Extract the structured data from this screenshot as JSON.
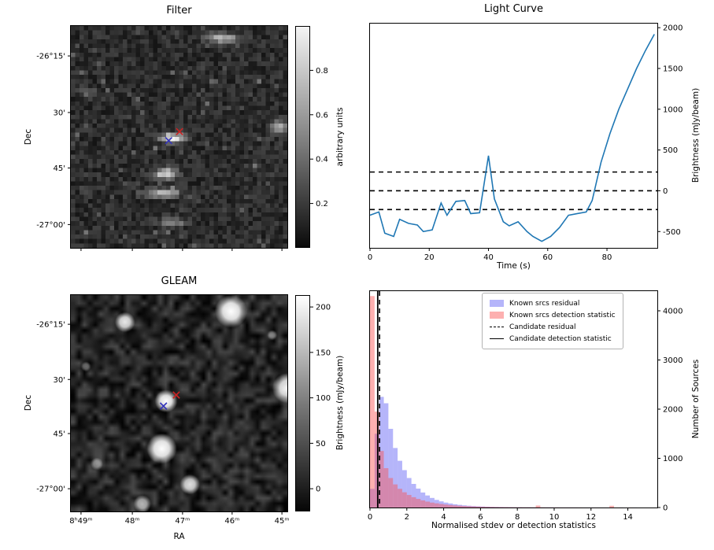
{
  "chart_data": [
    {
      "name": "filter-map",
      "type": "heatmap",
      "title": "Filter",
      "ylabel": "Dec",
      "yticks": [
        "-26°15'",
        "30'",
        "45'",
        "-27°00'"
      ],
      "colorbar": {
        "label": "arbitrary units",
        "ticks": [
          0.8,
          0.6,
          0.4,
          0.2
        ]
      },
      "markers": [
        {
          "name": "candidate-position",
          "x": 0.452,
          "y": 0.517,
          "color": "#3333bb"
        },
        {
          "name": "known-source-position",
          "x": 0.502,
          "y": 0.476,
          "color": "#cc2222"
        }
      ],
      "image": {
        "grid": 50,
        "seed": 11,
        "base": 0.17,
        "noise": 0.09,
        "features": [
          {
            "x": 0.7,
            "y": 0.055,
            "rx": 0.075,
            "ry": 0.022,
            "i": 0.55
          },
          {
            "x": 0.47,
            "y": 0.505,
            "rx": 0.055,
            "ry": 0.02,
            "i": 0.8
          },
          {
            "x": 0.965,
            "y": 0.455,
            "rx": 0.04,
            "ry": 0.028,
            "i": 0.5
          },
          {
            "x": 0.44,
            "y": 0.665,
            "rx": 0.05,
            "ry": 0.026,
            "i": 0.6
          },
          {
            "x": 0.42,
            "y": 0.755,
            "rx": 0.075,
            "ry": 0.02,
            "i": 0.55
          },
          {
            "x": 0.47,
            "y": 0.885,
            "rx": 0.055,
            "ry": 0.018,
            "i": 0.4
          },
          {
            "x": 0.08,
            "y": 0.3,
            "rx": 0.03,
            "ry": 0.02,
            "i": 0.28
          }
        ]
      }
    },
    {
      "name": "light-curve",
      "type": "line",
      "title": "Light Curve",
      "xlabel": "Time (s)",
      "ylabel": "Brightness (mJy/beam)",
      "xlim": [
        0,
        97
      ],
      "ylim": [
        -700,
        2050
      ],
      "xticks": [
        0,
        20,
        40,
        60,
        80
      ],
      "yticks": [
        -500,
        0,
        500,
        1000,
        1500,
        2000
      ],
      "line_color": "#1f77b4",
      "thresholds": [
        230,
        0,
        -230
      ],
      "x": [
        0,
        3,
        5,
        8,
        10,
        13,
        16,
        18,
        21,
        24,
        26,
        29,
        32,
        34,
        37,
        40,
        42,
        45,
        47,
        50,
        53,
        55,
        58,
        61,
        64,
        67,
        70,
        73,
        75,
        78,
        81,
        84,
        87,
        90,
        93,
        96
      ],
      "y": [
        -300,
        -260,
        -520,
        -560,
        -350,
        -400,
        -420,
        -500,
        -480,
        -150,
        -300,
        -130,
        -120,
        -280,
        -270,
        430,
        -100,
        -380,
        -430,
        -380,
        -500,
        -560,
        -620,
        -560,
        -450,
        -300,
        -280,
        -260,
        -120,
        350,
        700,
        1000,
        1250,
        1500,
        1720,
        1920
      ]
    },
    {
      "name": "gleam-map",
      "type": "heatmap",
      "title": "GLEAM",
      "xlabel": "RA",
      "ylabel": "Dec",
      "xticks": [
        "8ʰ49ᵐ",
        "48ᵐ",
        "47ᵐ",
        "46ᵐ",
        "45ᵐ"
      ],
      "yticks": [
        "-26°15'",
        "30'",
        "45'",
        "-27°00'"
      ],
      "colorbar": {
        "label": "Brightness (mJy/beam)",
        "ticks": [
          200,
          150,
          100,
          50,
          0
        ]
      },
      "markers": [
        {
          "name": "candidate-position",
          "x": 0.428,
          "y": 0.513,
          "color": "#3333bb"
        },
        {
          "name": "known-source-position",
          "x": 0.487,
          "y": 0.462,
          "color": "#cc2222"
        }
      ],
      "sources": [
        {
          "x": 0.74,
          "y": 0.075,
          "r": 13,
          "i": 1.0
        },
        {
          "x": 0.25,
          "y": 0.125,
          "r": 8,
          "i": 0.9
        },
        {
          "x": 0.93,
          "y": 0.185,
          "r": 4,
          "i": 0.45
        },
        {
          "x": 0.07,
          "y": 0.33,
          "r": 4,
          "i": 0.4
        },
        {
          "x": 1.0,
          "y": 0.43,
          "r": 12,
          "i": 0.95
        },
        {
          "x": 0.44,
          "y": 0.49,
          "r": 9,
          "i": 1.0
        },
        {
          "x": 0.42,
          "y": 0.71,
          "r": 12,
          "i": 1.0
        },
        {
          "x": 0.12,
          "y": 0.78,
          "r": 5,
          "i": 0.5
        },
        {
          "x": 0.55,
          "y": 0.875,
          "r": 8,
          "i": 0.85
        },
        {
          "x": 0.33,
          "y": 0.965,
          "r": 7,
          "i": 0.7
        }
      ],
      "noise": {
        "seed": 5,
        "grid": 40,
        "max": 0.3
      }
    },
    {
      "name": "source-statistics-histogram",
      "type": "bar",
      "xlabel": "Normalised stdev or detection statistics",
      "ylabel": "Number of Sources",
      "xlim": [
        0,
        15.6
      ],
      "ylim": [
        0,
        4400
      ],
      "xticks": [
        0,
        2,
        4,
        6,
        8,
        10,
        12,
        14
      ],
      "yticks": [
        0,
        1000,
        2000,
        3000,
        4000
      ],
      "bin_width": 0.25,
      "series": [
        {
          "name": "Known srcs residual",
          "color": "rgba(90,90,245,0.45)",
          "values": [
            380,
            1500,
            2250,
            2120,
            1600,
            1210,
            950,
            760,
            600,
            480,
            385,
            305,
            245,
            195,
            155,
            125,
            100,
            82,
            66,
            54,
            44,
            36,
            30,
            25,
            21,
            17,
            14,
            12,
            10,
            9,
            8,
            7,
            6,
            5,
            5,
            4,
            4,
            3,
            3,
            3,
            2,
            2,
            2,
            2,
            2,
            1,
            1,
            1,
            1,
            1,
            1,
            1,
            1,
            0,
            1,
            0,
            0,
            1,
            0,
            0,
            0,
            0,
            0
          ]
        },
        {
          "name": "Known srcs detection statistic",
          "color": "rgba(250,80,80,0.45)",
          "values": [
            4300,
            1950,
            1150,
            800,
            600,
            470,
            380,
            310,
            255,
            210,
            175,
            145,
            120,
            100,
            85,
            72,
            60,
            50,
            42,
            36,
            30,
            26,
            22,
            19,
            16,
            14,
            12,
            10,
            9,
            8,
            7,
            6,
            6,
            5,
            5,
            4,
            40,
            4,
            3,
            3,
            3,
            2,
            2,
            2,
            2,
            2,
            1,
            1,
            1,
            1,
            1,
            1,
            35,
            1,
            1,
            0,
            1,
            0,
            0,
            0,
            0,
            0,
            0
          ]
        }
      ],
      "candidate_residual": {
        "label": "Candidate residual",
        "x": 0.52,
        "style": "dashed",
        "color": "#000000"
      },
      "candidate_detection": {
        "label": "Candidate detection statistic",
        "x": 0.42,
        "style": "solid",
        "color": "#000000"
      }
    }
  ]
}
